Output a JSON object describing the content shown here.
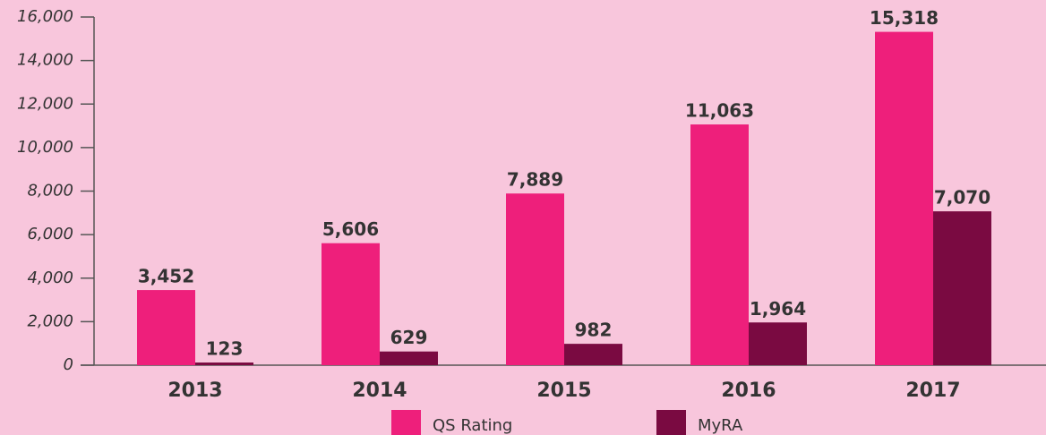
{
  "chart_data": {
    "type": "bar",
    "categories": [
      "2013",
      "2014",
      "2015",
      "2016",
      "2017"
    ],
    "series": [
      {
        "name": "QS Rating",
        "color": "#ee1f7b",
        "values": [
          3452,
          5606,
          7889,
          11063,
          15318
        ],
        "value_labels": [
          "3,452",
          "5,606",
          "7,889",
          "11,063",
          "15,318"
        ]
      },
      {
        "name": "MyRA",
        "color": "#7a0a41",
        "values": [
          123,
          629,
          982,
          1964,
          7070
        ],
        "value_labels": [
          "123",
          "629",
          "982",
          "1,964",
          "7,070"
        ]
      }
    ],
    "ylim": [
      0,
      16000
    ],
    "yticks": [
      {
        "value": 0,
        "label": "0"
      },
      {
        "value": 2000,
        "label": "2,000"
      },
      {
        "value": 4000,
        "label": "4,000"
      },
      {
        "value": 6000,
        "label": "6,000"
      },
      {
        "value": 8000,
        "label": "8,000"
      },
      {
        "value": 10000,
        "label": "10,000"
      },
      {
        "value": 12000,
        "label": "12,000"
      },
      {
        "value": 14000,
        "label": "14,000"
      },
      {
        "value": 16000,
        "label": "16,000"
      }
    ],
    "grid": false,
    "legend": "bottom"
  }
}
